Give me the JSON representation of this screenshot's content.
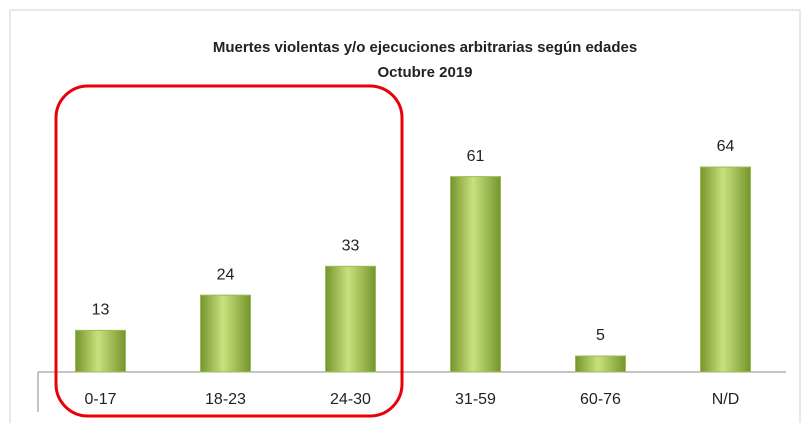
{
  "chart_data": {
    "type": "bar",
    "title": "Muertes violentas y/o ejecuciones arbitrarias según edades",
    "subtitle": "Octubre 2019",
    "categories": [
      "0-17",
      "18-23",
      "24-30",
      "31-59",
      "60-76",
      "N/D"
    ],
    "values": [
      13,
      24,
      33,
      61,
      5,
      64
    ],
    "color": "#9bbb59"
  }
}
